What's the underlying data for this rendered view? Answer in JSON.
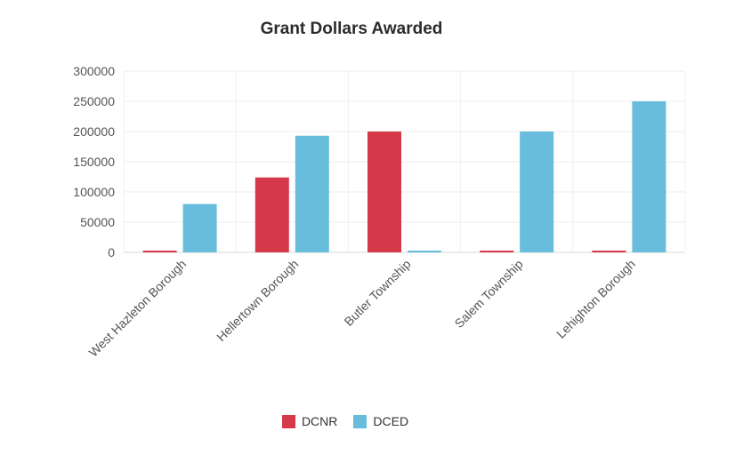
{
  "chart_data": {
    "type": "bar",
    "title": "Grant Dollars Awarded",
    "xlabel": "",
    "ylabel": "",
    "categories": [
      "West Hazleton Borough",
      "Hellertown Borough",
      "Butler Township",
      "Salem Township",
      "Lehighton Borough"
    ],
    "series": [
      {
        "name": "DCNR",
        "color": "#d63a4a",
        "values": [
          0,
          124000,
          200000,
          0,
          0
        ]
      },
      {
        "name": "DCED",
        "color": "#67bddb",
        "values": [
          80000,
          193000,
          0,
          200000,
          250000
        ]
      }
    ],
    "ylim": [
      0,
      300000
    ],
    "yticks": [
      "0",
      "50000",
      "100000",
      "150000",
      "200000",
      "250000",
      "300000"
    ],
    "grid": true,
    "legend_position": "bottom"
  }
}
